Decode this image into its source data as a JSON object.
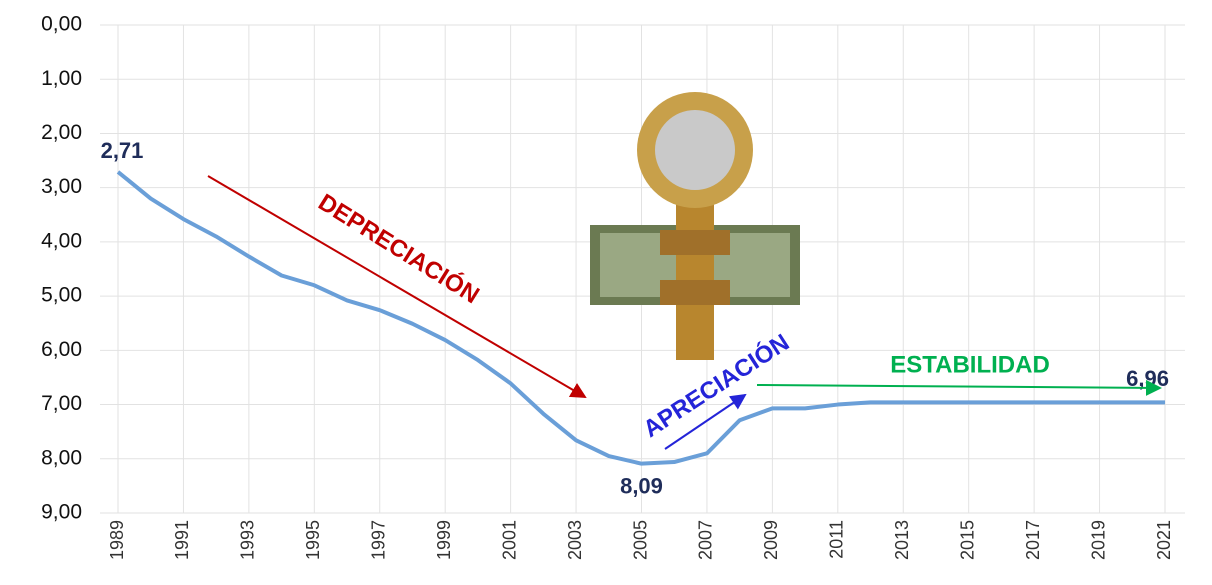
{
  "chart_data": {
    "type": "line",
    "x": [
      1989,
      1990,
      1991,
      1992,
      1993,
      1994,
      1995,
      1996,
      1997,
      1998,
      1999,
      2000,
      2001,
      2002,
      2003,
      2004,
      2005,
      2006,
      2007,
      2008,
      2009,
      2010,
      2011,
      2012,
      2013,
      2014,
      2015,
      2016,
      2017,
      2018,
      2019,
      2020,
      2021
    ],
    "values": [
      2.71,
      3.2,
      3.58,
      3.9,
      4.27,
      4.62,
      4.8,
      5.08,
      5.26,
      5.51,
      5.81,
      6.18,
      6.61,
      7.17,
      7.66,
      7.95,
      8.09,
      8.06,
      7.9,
      7.29,
      7.07,
      7.07,
      7.0,
      6.96,
      6.96,
      6.96,
      6.96,
      6.96,
      6.96,
      6.96,
      6.96,
      6.96,
      6.96
    ],
    "value_labels": [
      "2,71",
      null,
      null,
      null,
      null,
      null,
      null,
      null,
      null,
      null,
      null,
      null,
      null,
      null,
      null,
      null,
      "8,09",
      null,
      null,
      null,
      null,
      null,
      null,
      null,
      null,
      null,
      null,
      null,
      null,
      null,
      null,
      null,
      "6,96"
    ],
    "color": "#6a9fd8",
    "xlim": [
      1989,
      2021
    ],
    "xticks": [
      1989,
      1991,
      1993,
      1995,
      1997,
      1999,
      2001,
      2003,
      2005,
      2007,
      2009,
      2011,
      2013,
      2015,
      2017,
      2019,
      2021
    ],
    "ylim": [
      0,
      9
    ],
    "y_inverted": true,
    "yticks": [
      {
        "value": 0,
        "label": "0,00"
      },
      {
        "value": 1,
        "label": "1,00"
      },
      {
        "value": 2,
        "label": "2,00"
      },
      {
        "value": 3,
        "label": "3,00"
      },
      {
        "value": 4,
        "label": "4,00"
      },
      {
        "value": 5,
        "label": "5,00"
      },
      {
        "value": 6,
        "label": "6,00"
      },
      {
        "value": 7,
        "label": "7,00"
      },
      {
        "value": 8,
        "label": "8,00"
      },
      {
        "value": 9,
        "label": "9,00"
      }
    ],
    "grid": true,
    "annotations": [
      {
        "text": "DEPRECIACIÓN",
        "color": "#c00000"
      },
      {
        "text": "APRECIACIÓN",
        "color": "#2424d8"
      },
      {
        "text": "ESTABILIDAD",
        "color": "#00b050"
      }
    ]
  }
}
